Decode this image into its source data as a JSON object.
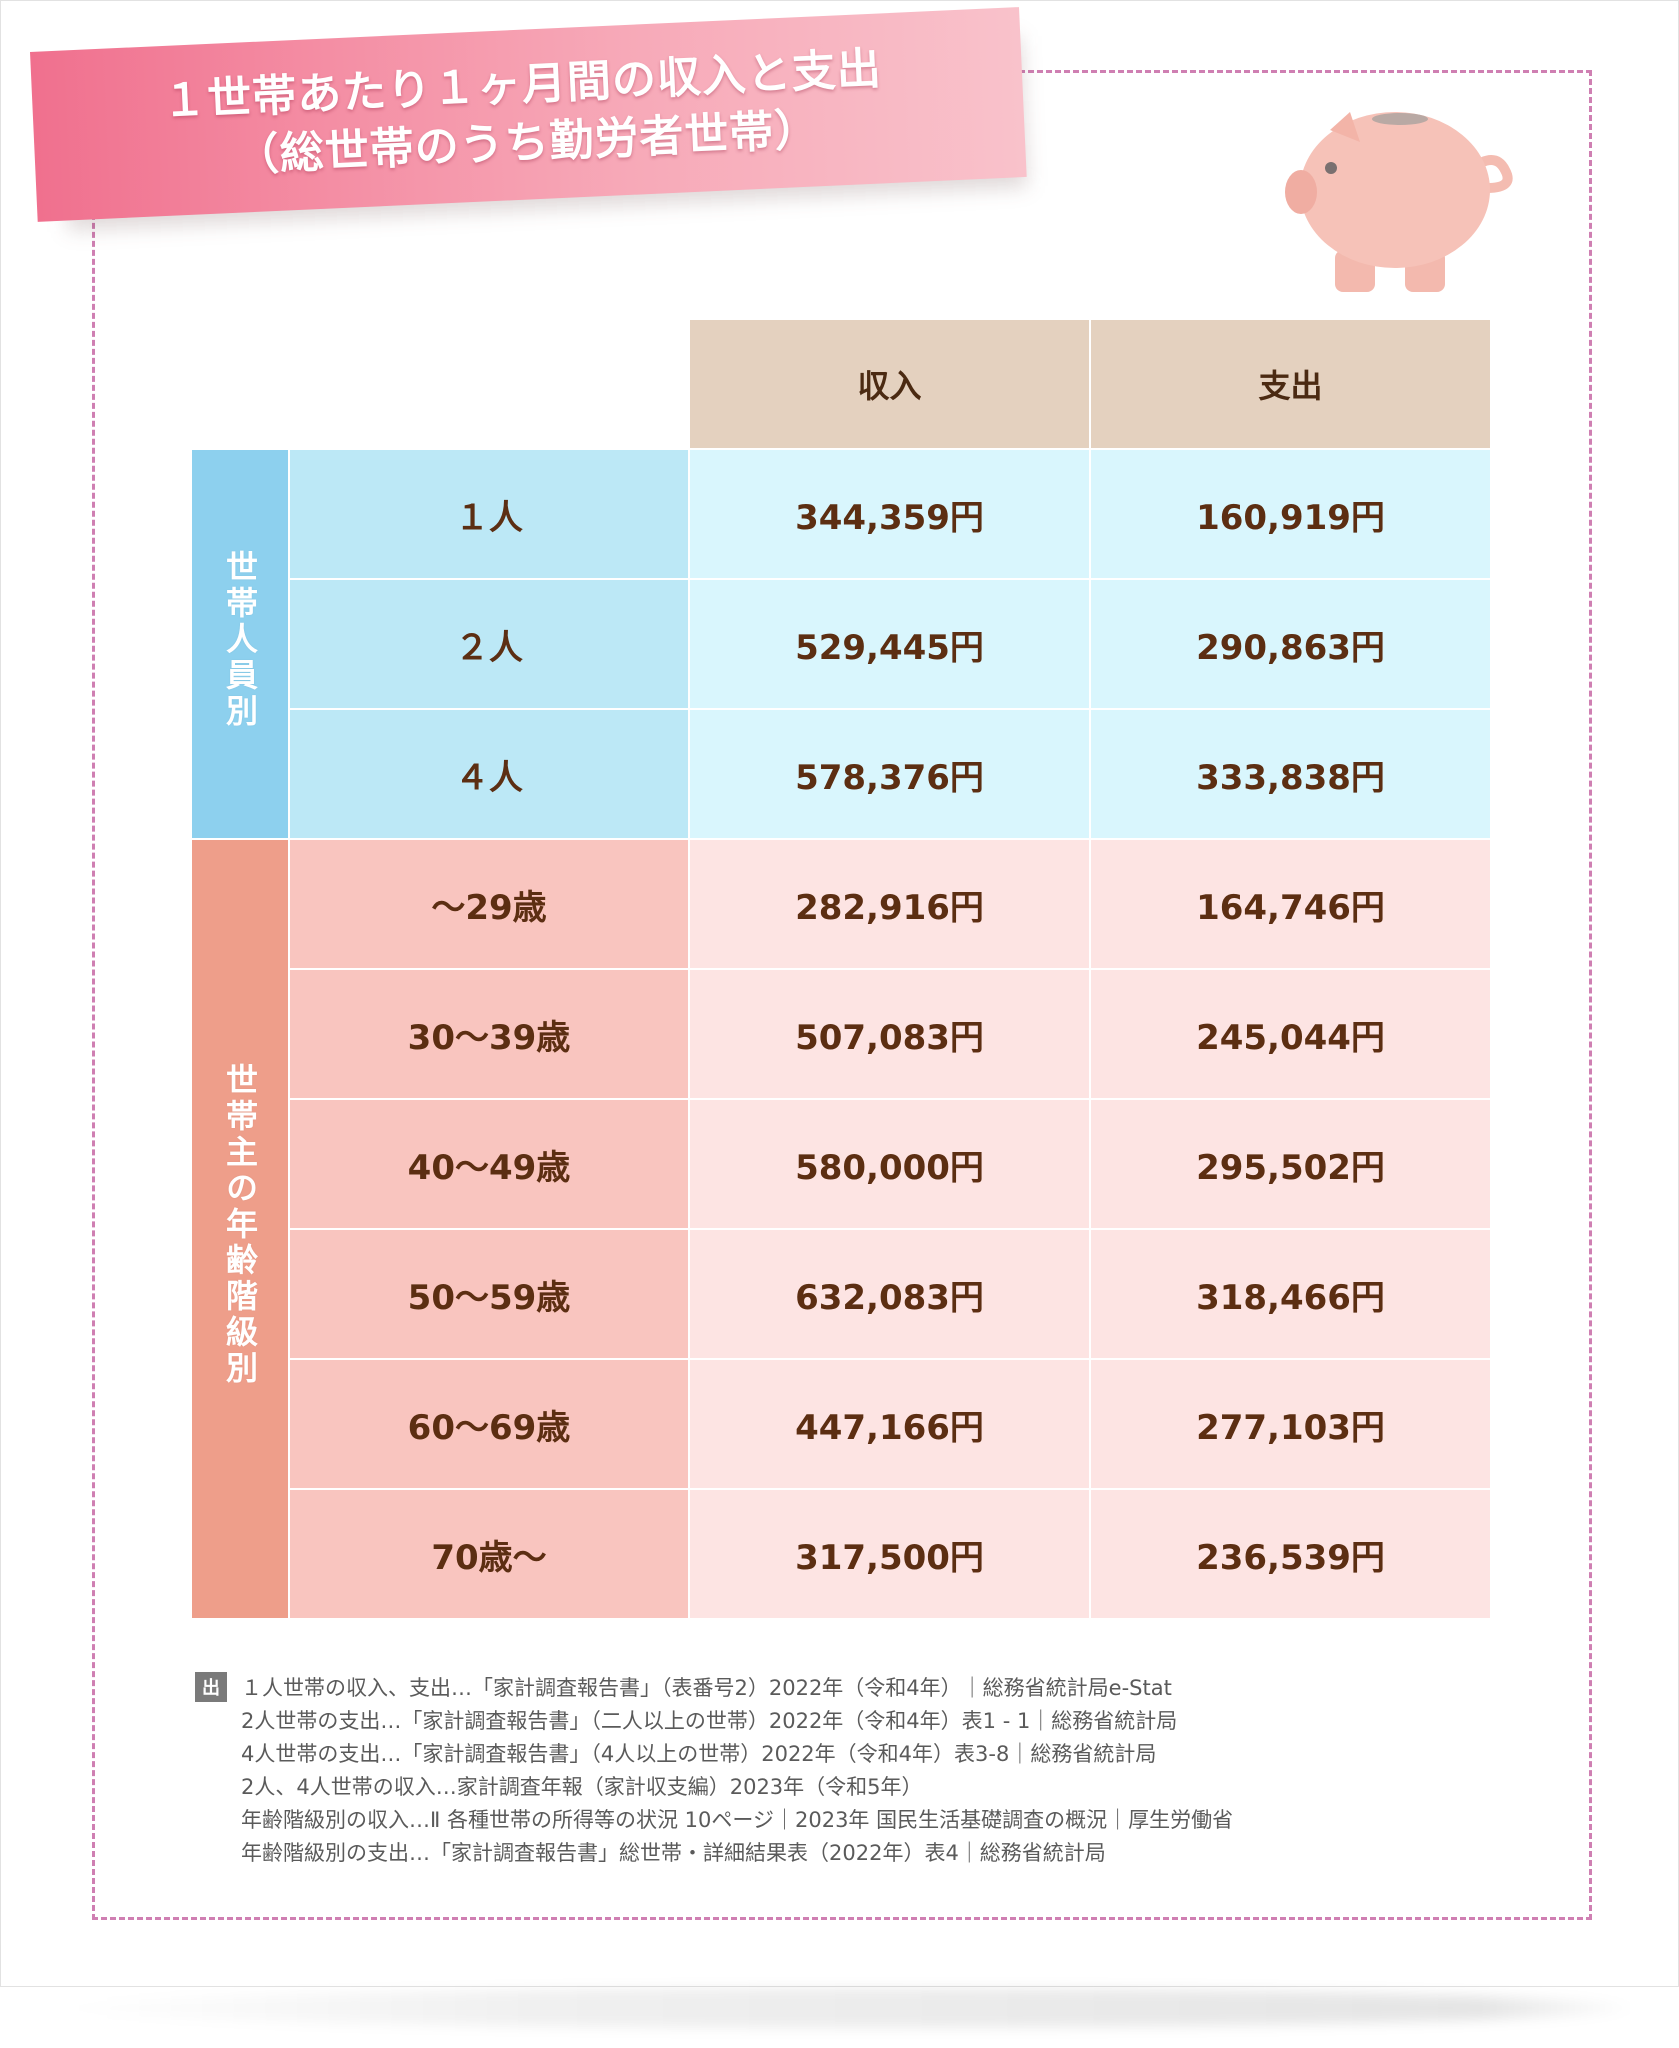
{
  "title": {
    "line1": "１世帯あたり１ヶ月間の収入と支出",
    "line2": "（総世帯のうち勤労者世帯）"
  },
  "colors": {
    "banner": "#f0708e",
    "frame_dash": "#cf7fb2",
    "header_bg": "#e4d1bf",
    "blue_group": "#8dd0ee",
    "pink_group": "#ee9e8a",
    "text": "#5c2e12"
  },
  "decoration": {
    "pig_icon": "piggy-bank-icon"
  },
  "table": {
    "columns": [
      "収入",
      "支出"
    ],
    "groups": [
      {
        "label": "世帯人員別",
        "rows": [
          {
            "label": "１人",
            "income": "344,359円",
            "expense": "160,919円"
          },
          {
            "label": "２人",
            "income": "529,445円",
            "expense": "290,863円"
          },
          {
            "label": "４人",
            "income": "578,376円",
            "expense": "333,838円"
          }
        ]
      },
      {
        "label": "世帯主の年齢階級別",
        "rows": [
          {
            "label": "～29歳",
            "income": "282,916円",
            "expense": "164,746円"
          },
          {
            "label": "30～39歳",
            "income": "507,083円",
            "expense": "245,044円"
          },
          {
            "label": "40～49歳",
            "income": "580,000円",
            "expense": "295,502円"
          },
          {
            "label": "50～59歳",
            "income": "632,083円",
            "expense": "318,466円"
          },
          {
            "label": "60～69歳",
            "income": "447,166円",
            "expense": "277,103円"
          },
          {
            "label": "70歳～",
            "income": "317,500円",
            "expense": "236,539円"
          }
        ]
      }
    ]
  },
  "source": {
    "badge": "出",
    "lines": [
      "１人世帯の収入、支出…「家計調査報告書」（表番号2）2022年（令和4年）｜総務省統計局e-Stat",
      "2人世帯の支出…「家計調査報告書」（二人以上の世帯）2022年（令和4年）表1 - 1｜総務省統計局",
      "4人世帯の支出…「家計調査報告書」（4人以上の世帯）2022年（令和4年）表3-8｜総務省統計局",
      "2人、4人世帯の収入…家計調査年報（家計収支編）2023年（令和5年）",
      "年齢階級別の収入…Ⅱ 各種世帯の所得等の状況 10ページ｜2023年 国民生活基礎調査の概況｜厚生労働省",
      "年齢階級別の支出…「家計調査報告書」総世帯・詳細結果表（2022年）表4｜総務省統計局"
    ]
  }
}
